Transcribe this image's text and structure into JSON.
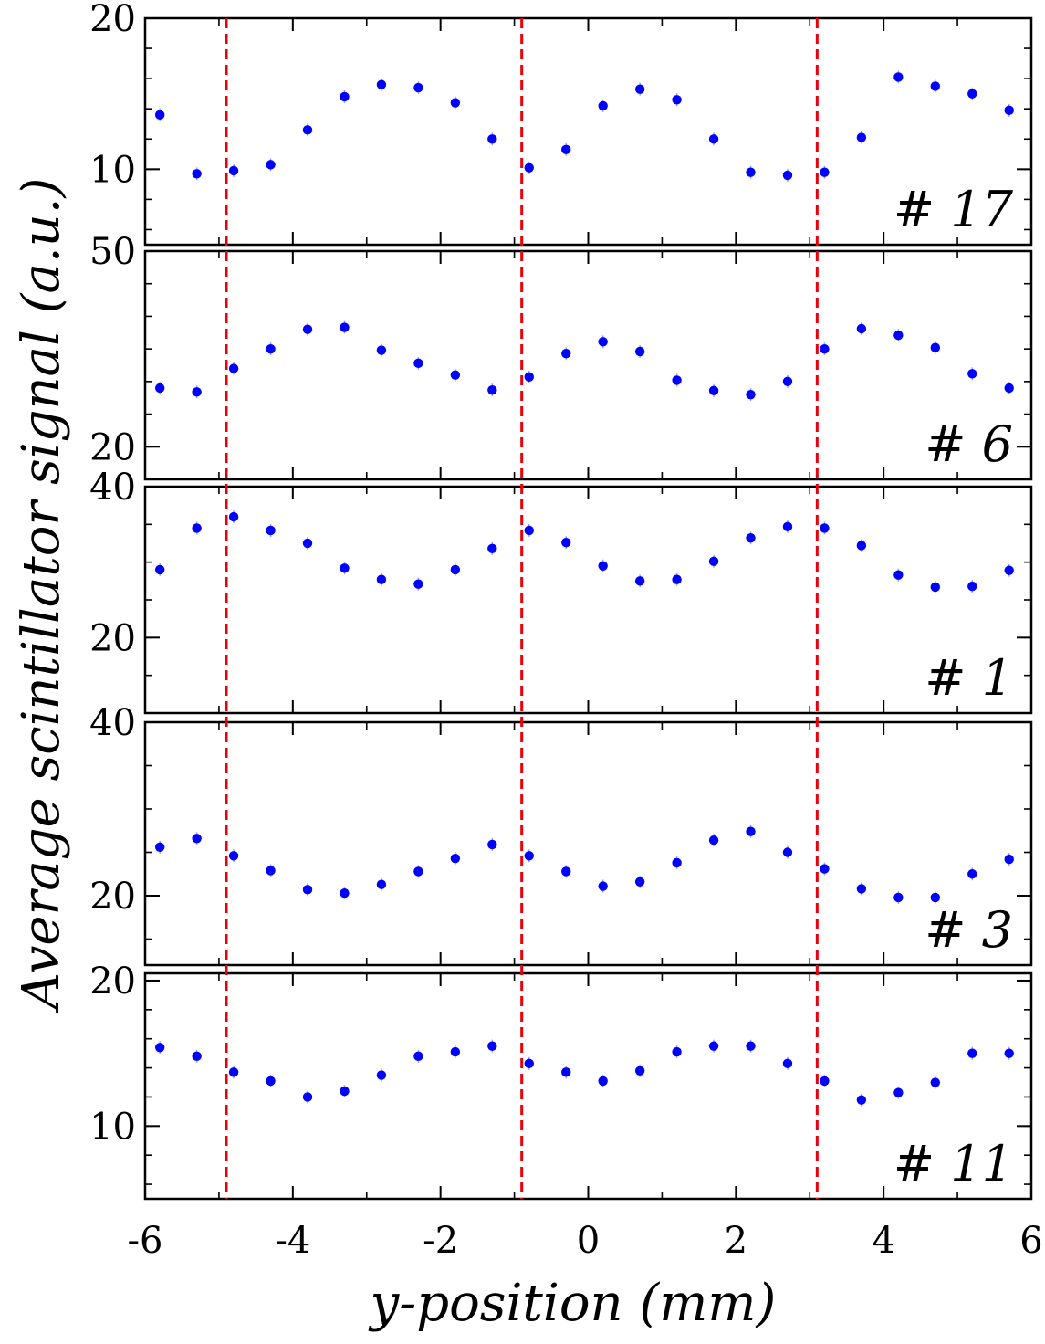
{
  "chart_data": {
    "type": "scatter",
    "x_label": "y-position (mm)",
    "y_label": "Average scintillator signal (a.u.)",
    "x_range": [
      -6,
      6
    ],
    "x_ticks": [
      "-6",
      "-4",
      "-2",
      "0",
      "2",
      "4",
      "6"
    ],
    "x_tick_values": [
      -6,
      -4,
      -2,
      0,
      2,
      4,
      6
    ],
    "dashed_lines_x": [
      -4.9,
      -0.9,
      3.1
    ],
    "colors": {
      "points": "#0000ff",
      "dashed_lines": "#e8000b",
      "error_bars": "#9aa6e8"
    },
    "x_positions": [
      -5.8,
      -5.3,
      -4.8,
      -4.3,
      -3.8,
      -3.3,
      -2.8,
      -2.3,
      -1.8,
      -1.3,
      -0.8,
      -0.3,
      0.2,
      0.7,
      1.2,
      1.7,
      2.2,
      2.7,
      3.2,
      3.7,
      4.2,
      4.7,
      5.2,
      5.7
    ],
    "panels": [
      {
        "label": "# 17",
        "y_range": [
          5,
          20
        ],
        "y_ticks": [
          "10",
          "20"
        ],
        "y_tick_values": [
          10,
          20
        ],
        "values": [
          13.6,
          9.7,
          9.9,
          10.3,
          12.6,
          14.8,
          15.6,
          15.4,
          14.4,
          12.0,
          10.1,
          11.3,
          14.2,
          15.3,
          14.6,
          12.0,
          9.8,
          9.6,
          9.8,
          12.1,
          16.1,
          15.5,
          15.0,
          13.9
        ]
      },
      {
        "label": "# 6",
        "y_range": [
          15,
          50
        ],
        "y_ticks": [
          "20",
          "50"
        ],
        "y_tick_values": [
          20,
          50
        ],
        "values": [
          29.0,
          28.4,
          32.0,
          35.0,
          38.0,
          38.3,
          34.8,
          32.8,
          31.0,
          28.7,
          30.7,
          34.3,
          36.1,
          34.6,
          30.2,
          28.6,
          28.0,
          30.0,
          35.0,
          38.1,
          37.1,
          35.2,
          31.2,
          29.0
        ]
      },
      {
        "label": "# 1",
        "y_range": [
          10,
          40
        ],
        "y_ticks": [
          "20",
          "40"
        ],
        "y_tick_values": [
          20,
          40
        ],
        "values": [
          29.0,
          34.5,
          36.0,
          34.2,
          32.5,
          29.2,
          27.7,
          27.1,
          29.0,
          31.8,
          34.2,
          32.6,
          29.5,
          27.5,
          27.7,
          30.1,
          33.2,
          34.7,
          34.5,
          32.2,
          28.3,
          26.7,
          26.8,
          28.9
        ]
      },
      {
        "label": "# 3",
        "y_range": [
          12,
          40
        ],
        "y_ticks": [
          "20",
          "40"
        ],
        "y_tick_values": [
          20,
          40
        ],
        "values": [
          25.6,
          26.6,
          24.6,
          22.9,
          20.7,
          20.3,
          21.3,
          22.8,
          24.3,
          25.9,
          24.6,
          22.8,
          21.1,
          21.6,
          23.8,
          26.4,
          27.4,
          25.0,
          23.1,
          20.8,
          19.8,
          19.8,
          22.5,
          24.2
        ]
      },
      {
        "label": "# 11",
        "y_range": [
          5,
          20.5
        ],
        "y_ticks": [
          "10",
          "20"
        ],
        "y_tick_values": [
          10,
          20
        ],
        "values": [
          15.4,
          14.8,
          13.7,
          13.1,
          12.0,
          12.4,
          13.5,
          14.8,
          15.1,
          15.5,
          14.3,
          13.7,
          13.1,
          13.8,
          15.1,
          15.5,
          15.5,
          14.3,
          13.1,
          11.8,
          12.3,
          13.0,
          15.0,
          15.0
        ]
      }
    ]
  }
}
